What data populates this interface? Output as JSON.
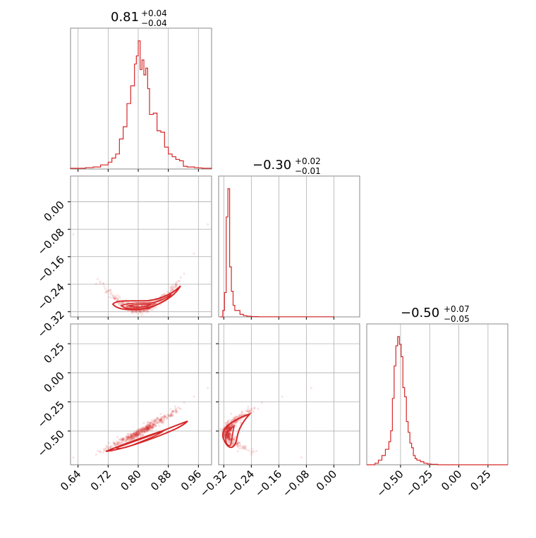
{
  "accent_color": "#d62728",
  "chart_data": [
    {
      "type": "histogram",
      "panel": "hist-p1",
      "title": {
        "value": "0.81",
        "plus": "+0.04",
        "minus": "−0.04"
      },
      "xlim": [
        0.62,
        0.995
      ],
      "bin_edges": [
        0.62,
        0.64,
        0.66,
        0.68,
        0.7,
        0.72,
        0.73,
        0.74,
        0.75,
        0.76,
        0.77,
        0.78,
        0.79,
        0.795,
        0.8,
        0.805,
        0.81,
        0.815,
        0.82,
        0.825,
        0.83,
        0.84,
        0.85,
        0.86,
        0.87,
        0.88,
        0.89,
        0.9,
        0.91,
        0.92,
        0.93,
        0.94,
        0.95,
        0.96,
        0.97,
        0.98,
        0.995
      ],
      "counts": [
        0.5,
        0.5,
        1,
        1.5,
        3,
        5,
        8,
        11,
        22,
        31,
        48,
        61,
        77,
        83,
        94,
        73,
        80,
        69,
        74,
        59,
        40,
        41,
        28,
        27,
        16,
        11,
        9,
        7,
        6,
        2,
        1.5,
        1.5,
        1,
        0.8,
        0.5,
        0.5
      ],
      "grid": true
    },
    {
      "type": "histogram",
      "panel": "hist-p2",
      "title": {
        "value": "−0.30",
        "plus": "+0.02",
        "minus": "−0.01"
      },
      "xlim": [
        -0.33,
        0.0
      ],
      "bin_edges": [
        -0.33,
        -0.323,
        -0.318,
        -0.313,
        -0.308,
        -0.303,
        -0.298,
        -0.293,
        -0.288,
        -0.283,
        -0.278,
        -0.273,
        -0.268,
        -0.263,
        -0.258,
        -0.253,
        -0.248,
        -0.24,
        -0.23,
        -0.22,
        -0.0
      ],
      "counts": [
        0,
        5,
        19,
        78,
        100,
        39,
        20,
        9,
        5,
        5,
        5,
        2,
        2,
        1,
        1,
        0.5,
        0.5,
        0.3,
        0.2,
        0.1
      ],
      "grid": true
    },
    {
      "type": "histogram",
      "panel": "hist-p3",
      "title": {
        "value": "−0.50",
        "plus": "+0.07",
        "minus": "−0.05"
      },
      "xlim": [
        -0.79,
        0.42
      ],
      "bin_edges": [
        -0.79,
        -0.72,
        -0.69,
        -0.66,
        -0.63,
        -0.6,
        -0.585,
        -0.57,
        -0.555,
        -0.54,
        -0.525,
        -0.51,
        -0.495,
        -0.48,
        -0.465,
        -0.45,
        -0.435,
        -0.42,
        -0.405,
        -0.39,
        -0.375,
        -0.36,
        -0.345,
        -0.33,
        -0.3,
        -0.27,
        -0.24,
        -0.18,
        0.42
      ],
      "counts": [
        0,
        1,
        3,
        6,
        10,
        15,
        22,
        43,
        64,
        77,
        83,
        78,
        70,
        50,
        44,
        28,
        21,
        14,
        11,
        6,
        4,
        3,
        3,
        2,
        1,
        0.5,
        0.3,
        0
      ],
      "grid": true
    },
    {
      "type": "scatter",
      "panel": "scatter-p1-p2",
      "xlim": [
        0.62,
        0.995
      ],
      "ylim": [
        -0.335,
        0.075
      ],
      "yticks": [
        "0.00",
        "−0.08",
        "−0.16",
        "−0.24",
        "−0.32"
      ],
      "ytick_values": [
        0.0,
        -0.08,
        -0.16,
        -0.24,
        -0.32
      ],
      "grid": true
    },
    {
      "type": "scatter",
      "panel": "scatter-p1-p3",
      "xlim": [
        0.62,
        0.995
      ],
      "ylim": [
        -0.79,
        0.42
      ],
      "xticks": [
        "0.64",
        "0.72",
        "0.80",
        "0.88",
        "0.96"
      ],
      "xtick_values": [
        0.64,
        0.72,
        0.8,
        0.88,
        0.96
      ],
      "yticks": [
        "0.25",
        "0.00",
        "−0.25",
        "−0.50"
      ],
      "ytick_values": [
        0.25,
        0.0,
        -0.25,
        -0.5
      ],
      "grid": true
    },
    {
      "type": "scatter",
      "panel": "scatter-p2-p3",
      "xlim": [
        -0.335,
        0.075
      ],
      "ylim": [
        -0.79,
        0.42
      ],
      "xticks": [
        "−0.32",
        "−0.24",
        "−0.16",
        "−0.08",
        "0.00"
      ],
      "xtick_values": [
        -0.32,
        -0.24,
        -0.16,
        -0.08,
        0.0
      ],
      "grid": true
    },
    {
      "type": "histogram-axis",
      "panel": "hist-p3-xaxis",
      "xlim": [
        -0.79,
        0.42
      ],
      "xticks": [
        "−0.50",
        "−0.25",
        "0.00",
        "0.25"
      ],
      "xtick_values": [
        -0.5,
        -0.25,
        0.0,
        0.25
      ]
    }
  ]
}
